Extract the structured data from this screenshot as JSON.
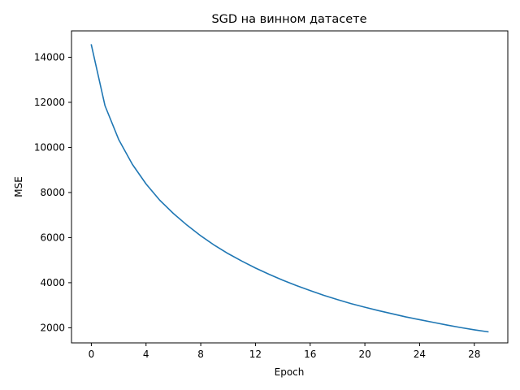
{
  "chart_data": {
    "type": "line",
    "title": "SGD на винном датасете",
    "xlabel": "Epoch",
    "ylabel": "MSE",
    "xlim": [
      -1.45,
      30.45
    ],
    "ylim": [
      1330,
      15170
    ],
    "xticks": [
      0,
      4,
      8,
      12,
      16,
      20,
      24,
      28
    ],
    "yticks": [
      2000,
      4000,
      6000,
      8000,
      10000,
      12000,
      14000
    ],
    "grid": false,
    "colors": {
      "line": "#1f77b4"
    },
    "series": [
      {
        "x": [
          0,
          1,
          2,
          3,
          4,
          5,
          6,
          7,
          8,
          9,
          10,
          11,
          12,
          13,
          14,
          15,
          16,
          17,
          18,
          19,
          20,
          21,
          22,
          23,
          24,
          25,
          26,
          27,
          28,
          29
        ],
        "values": [
          14550,
          11850,
          10350,
          9250,
          8380,
          7660,
          7070,
          6550,
          6080,
          5660,
          5290,
          4960,
          4650,
          4370,
          4110,
          3870,
          3650,
          3440,
          3250,
          3070,
          2910,
          2760,
          2620,
          2480,
          2360,
          2240,
          2120,
          2010,
          1910,
          1820
        ]
      }
    ]
  }
}
